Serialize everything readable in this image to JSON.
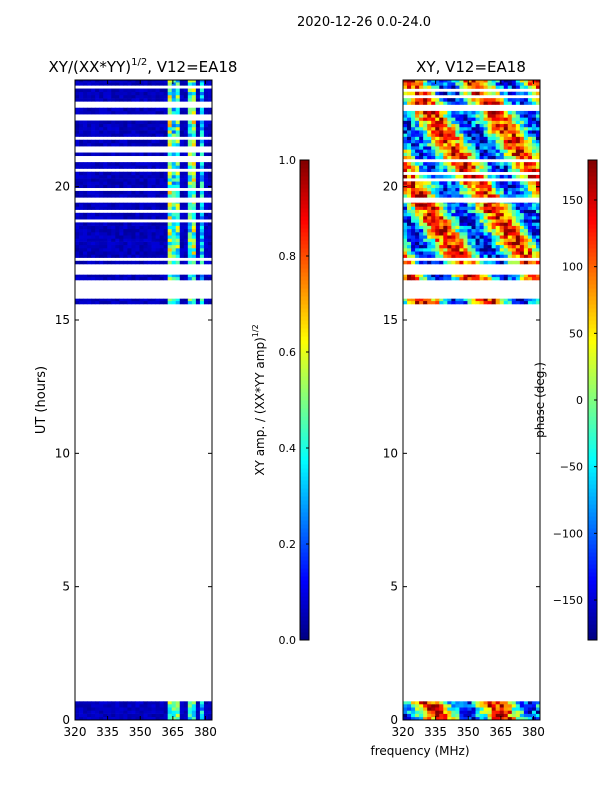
{
  "suptitle": "2020-12-26 0.0-24.0",
  "shared_xlabel": "frequency (MHz)",
  "chart_data": [
    {
      "type": "heatmap",
      "title_main": "XY/(XX*YY)",
      "title_exp": "1/2",
      "title_suffix": ", V12=EA18",
      "ylabel": "UT (hours)",
      "xlim": [
        320,
        383
      ],
      "ylim": [
        0,
        24
      ],
      "xticks": [
        320,
        335,
        350,
        365,
        380
      ],
      "yticks": [
        0,
        5,
        10,
        15,
        20
      ],
      "colorbar": {
        "label_main": "XY amp. / (XX*YY amp)",
        "label_exp": "1/2",
        "range": [
          0.0,
          1.0
        ],
        "ticks": [
          "0.0",
          "0.2",
          "0.4",
          "0.6",
          "0.8",
          "1.0"
        ],
        "tick_values": [
          0.0,
          0.2,
          0.4,
          0.6,
          0.8,
          1.0
        ]
      },
      "data_bands_hours": [
        [
          0.0,
          0.7
        ],
        [
          15.6,
          15.8
        ],
        [
          16.5,
          16.7
        ],
        [
          17.1,
          19.4
        ],
        [
          19.6,
          24.0
        ]
      ],
      "background_value": 0.03,
      "hot_channels": [
        {
          "freq": 363,
          "value": 0.6
        },
        {
          "freq": 366,
          "value": 0.45
        },
        {
          "freq": 368,
          "value": 0.55
        },
        {
          "freq": 372,
          "value": 0.5
        },
        {
          "freq": 375,
          "value": 0.6
        },
        {
          "freq": 378,
          "value": 0.4
        }
      ]
    },
    {
      "type": "heatmap",
      "title_main": "XY, V12=EA18",
      "xlim": [
        320,
        383
      ],
      "ylim": [
        0,
        24
      ],
      "xticks": [
        320,
        335,
        350,
        365,
        380
      ],
      "yticks": [
        0,
        5,
        10,
        15,
        20
      ],
      "colorbar": {
        "label_main": "phase (deg.)",
        "range": [
          -180,
          180
        ],
        "ticks": [
          "−150",
          "−100",
          "−50",
          "0",
          "50",
          "100",
          "150"
        ],
        "tick_values": [
          -150,
          -100,
          -50,
          0,
          50,
          100,
          150
        ]
      },
      "data_bands_hours": [
        [
          0.0,
          0.7
        ],
        [
          15.6,
          15.8
        ],
        [
          16.5,
          16.7
        ],
        [
          17.1,
          19.4
        ],
        [
          19.6,
          24.0
        ]
      ],
      "value_range": [
        -180,
        180
      ]
    }
  ]
}
